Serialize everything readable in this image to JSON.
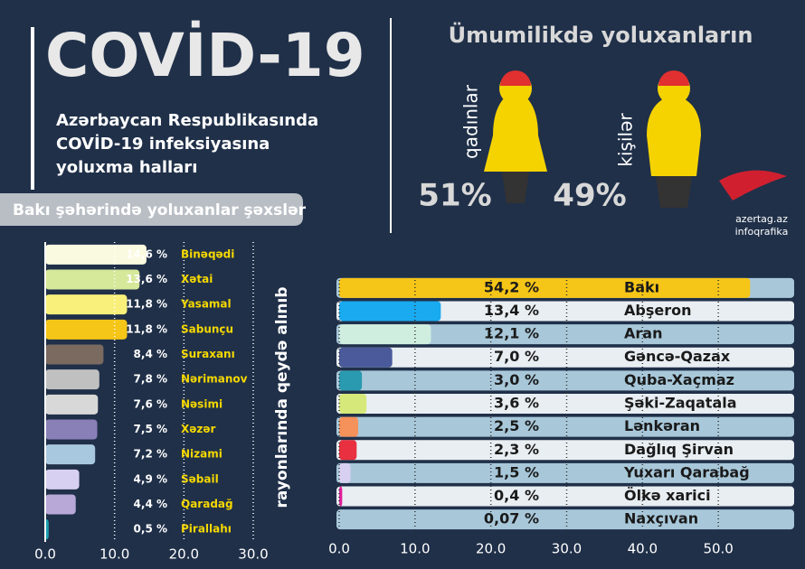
{
  "header": {
    "title": "COVİD-19",
    "subtitle": [
      "Azərbaycan Respublikasında",
      "COVİD-19 infeksiyasına",
      "yoluxma halları"
    ]
  },
  "gender": {
    "title": "Ümumilikdə yoluxanların",
    "items": [
      {
        "label": "qadınlar",
        "share": "51%"
      },
      {
        "label": "kişilər",
        "share": "49%"
      }
    ]
  },
  "credit": [
    "azertag.az",
    "infoqrafika"
  ],
  "chart_data": [
    {
      "type": "bar",
      "orientation": "horizontal",
      "title": "Bakı şəhərində yoluxanlar şəxslər",
      "categories": [
        "Binəqədi",
        "Xətai",
        "Yasamal",
        "Sabunçu",
        "Suraxanı",
        "Nərimanov",
        "Nəsimi",
        "Xəzər",
        "Nizami",
        "Səbail",
        "Qaradağ",
        "Pirallahı"
      ],
      "values": [
        14.6,
        13.6,
        11.8,
        11.8,
        8.4,
        7.8,
        7.6,
        7.5,
        7.2,
        4.9,
        4.4,
        0.5
      ],
      "value_labels": [
        "14,6 %",
        "13,6 %",
        "11,8 %",
        "11,8 %",
        "8,4 %",
        "7,8 %",
        "7,6 %",
        "7,5 %",
        "7,2 %",
        "4,9 %",
        "4,4 %",
        "0,5 %"
      ],
      "colors": [
        "#fafae0",
        "#d6e89a",
        "#f8f07a",
        "#f5c518",
        "#7a6a60",
        "#c0c0c0",
        "#d8d8d8",
        "#8a80b8",
        "#a8c8e0",
        "#d8d0f0",
        "#b8a8d8",
        "#1aa0b0"
      ],
      "xlim": [
        0,
        30
      ],
      "xticks": [
        {
          "value": 0,
          "label": "0.0"
        },
        {
          "value": 10,
          "label": "10.0"
        },
        {
          "value": 20,
          "label": "20.0"
        },
        {
          "value": 30,
          "label": "30.0"
        }
      ],
      "grid": true
    },
    {
      "type": "bar",
      "orientation": "horizontal",
      "ylabel": "rayonlarında qeydə alınıb",
      "categories": [
        "Bakı",
        "Abşeron",
        "Aran",
        "Gəncə-Qazax",
        "Quba-Xaçmaz",
        "Şəki-Zaqatala",
        "Lənkəran",
        "Dağlıq Şirvan",
        "Yuxarı Qarabağ",
        "Ölkə xarici",
        "Naxçıvan"
      ],
      "values": [
        54.2,
        13.4,
        12.1,
        7.0,
        3.0,
        3.6,
        2.5,
        2.3,
        1.5,
        0.4,
        0.07
      ],
      "value_labels": [
        "54,2 %",
        "13,4 %",
        "12,1 %",
        "7,0 %",
        "3,0 %",
        "3,6 %",
        "2,5 %",
        "2,3 %",
        "1,5 %",
        "0,4 %",
        "0,07 %"
      ],
      "colors": [
        "#f5c518",
        "#19aaf0",
        "#cfeee0",
        "#4a5a9a",
        "#2a9ab0",
        "#d6e87a",
        "#f5915a",
        "#e83040",
        "#d8d0f0",
        "#e0209a",
        "#a8c8e0"
      ],
      "xlim": [
        0,
        60
      ],
      "xticks": [
        {
          "value": 0,
          "label": "0.0"
        },
        {
          "value": 10,
          "label": "10.0"
        },
        {
          "value": 20,
          "label": "20.0"
        },
        {
          "value": 30,
          "label": "30.0"
        },
        {
          "value": 40,
          "label": "40.0"
        },
        {
          "value": 50,
          "label": "50.0"
        }
      ],
      "grid": true
    }
  ]
}
